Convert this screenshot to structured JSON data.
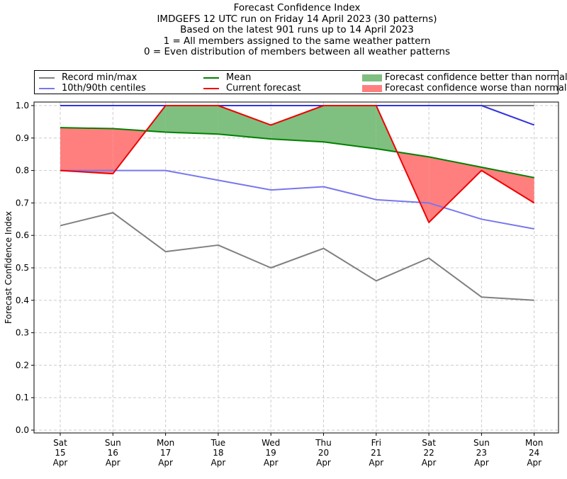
{
  "chart_data": {
    "type": "line",
    "title_lines": [
      "Forecast Confidence Index",
      "IMDGEFS 12 UTC run on Friday 14 April 2023 (30 patterns)",
      "Based on the latest 901 runs up to 14 April 2023",
      "1 = All members assigned to the same weather pattern",
      "0 = Even distribution of members between all weather patterns"
    ],
    "ylabel": "Forecast Confidence Index",
    "xlabel": "",
    "ylim": [
      0,
      1.0
    ],
    "yticks": [
      "0.0",
      "0.1",
      "0.2",
      "0.3",
      "0.4",
      "0.5",
      "0.6",
      "0.7",
      "0.8",
      "0.9",
      "1.0"
    ],
    "grid": true,
    "legend_placement": "top",
    "categories": [
      [
        "Sat",
        "15",
        "Apr"
      ],
      [
        "Sun",
        "16",
        "Apr"
      ],
      [
        "Mon",
        "17",
        "Apr"
      ],
      [
        "Tue",
        "18",
        "Apr"
      ],
      [
        "Wed",
        "19",
        "Apr"
      ],
      [
        "Thu",
        "20",
        "Apr"
      ],
      [
        "Fri",
        "21",
        "Apr"
      ],
      [
        "Sat",
        "22",
        "Apr"
      ],
      [
        "Sun",
        "23",
        "Apr"
      ],
      [
        "Mon",
        "24",
        "Apr"
      ]
    ],
    "series": [
      {
        "name": "Record min/max",
        "key": "record_min",
        "color": "#808080",
        "values": [
          0.63,
          0.67,
          0.55,
          0.57,
          0.5,
          0.56,
          0.46,
          0.53,
          0.41,
          0.4
        ]
      },
      {
        "name": "Record min/max",
        "key": "record_max",
        "color": "#808080",
        "values": [
          1.0,
          1.0,
          1.0,
          1.0,
          1.0,
          1.0,
          1.0,
          1.0,
          1.0,
          1.0
        ]
      },
      {
        "name": "10th/90th centiles",
        "key": "p10",
        "color": "#7777ee",
        "values": [
          0.8,
          0.8,
          0.8,
          0.77,
          0.74,
          0.75,
          0.71,
          0.7,
          0.65,
          0.62
        ]
      },
      {
        "name": "10th/90th centiles",
        "key": "p90",
        "color": "#3333dd",
        "values": [
          1.0,
          1.0,
          1.0,
          1.0,
          1.0,
          1.0,
          1.0,
          1.0,
          1.0,
          0.94
        ]
      },
      {
        "name": "Mean",
        "key": "mean",
        "color": "#008000",
        "values": [
          0.932,
          0.929,
          0.918,
          0.912,
          0.897,
          0.888,
          0.867,
          0.842,
          0.81,
          0.778
        ]
      },
      {
        "name": "Current forecast",
        "key": "current",
        "color": "#ee0000",
        "values": [
          0.8,
          0.79,
          1.0,
          1.0,
          0.94,
          1.0,
          1.0,
          0.64,
          0.8,
          0.7
        ]
      }
    ],
    "fills": [
      {
        "name": "Forecast confidence better than normal",
        "color": "#7fbf7f"
      },
      {
        "name": "Forecast confidence worse than normal",
        "color": "#ff7f7f"
      }
    ]
  }
}
